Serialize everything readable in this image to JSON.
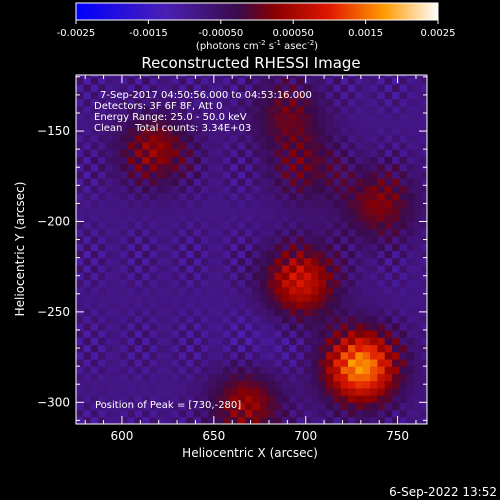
{
  "chart_data": {
    "type": "heatmap",
    "title": "Reconstructed RHESSI Image",
    "xlabel": "Heliocentric X (arcsec)",
    "ylabel": "Heliocentric Y (arcsec)",
    "xlim": [
      575,
      766
    ],
    "ylim": [
      -312,
      -119
    ],
    "xticks": [
      600,
      650,
      700,
      750
    ],
    "yticks": [
      -150,
      -200,
      -250,
      -300
    ],
    "colorbar": {
      "range": [
        -0.0025,
        0.0025
      ],
      "ticks": [
        "-0.0025",
        "-0.0015",
        "-0.00050",
        "0.00050",
        "0.0015",
        "0.0025"
      ],
      "unit_label": "(photons cm",
      "unit_sup1": "-2",
      "unit_mid": " s",
      "unit_sup2": "-1",
      "unit_tail": " asec",
      "unit_sup3": "-2",
      "unit_close": ")",
      "colormap": "blue-purple-red-yellow-white"
    },
    "annotations": [
      "7-Sep-2017 04:50:56.000 to 04:53:16.000",
      "Detectors: 3F 6F 8F, Att 0",
      "Energy Range: 25.0 - 50.0 keV",
      "Clean    Total counts: 3.34E+03"
    ],
    "peak_label": "Position of Peak = [730,-280]",
    "peak": {
      "x": 730,
      "y": -280
    },
    "sources": [
      {
        "x": 730,
        "y": -280,
        "value": 0.0025
      },
      {
        "x": 697,
        "y": -233,
        "value": 0.0016
      },
      {
        "x": 668,
        "y": -300,
        "value": 0.0012
      },
      {
        "x": 618,
        "y": -160,
        "value": 0.0011
      },
      {
        "x": 740,
        "y": -190,
        "value": 0.001
      },
      {
        "x": 690,
        "y": -140,
        "value": 0.0008
      },
      {
        "x": 700,
        "y": -170,
        "value": 0.0007
      }
    ],
    "minimum": {
      "x": 677,
      "y": -272,
      "value": -0.001
    },
    "grid": false,
    "legend": "none"
  },
  "footer_date": "6-Sep-2022 13:52"
}
